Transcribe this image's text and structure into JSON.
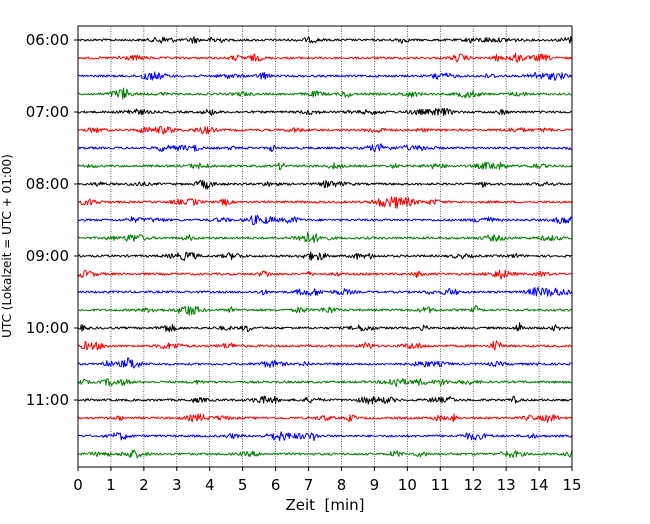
{
  "chart_data": {
    "type": "line",
    "title": "",
    "xlabel": "Zeit  [min]",
    "ylabel": "UTC (Lokalzeit = UTC + 01:00)",
    "xlim": [
      0,
      15
    ],
    "xticks": [
      0,
      1,
      2,
      3,
      4,
      5,
      6,
      7,
      8,
      9,
      10,
      11,
      12,
      13,
      14,
      15
    ],
    "xtick_labels": [
      "0",
      "1",
      "2",
      "3",
      "4",
      "5",
      "6",
      "7",
      "8",
      "9",
      "10",
      "11",
      "12",
      "13",
      "14",
      "15"
    ],
    "ytick_labels": [
      "06:00",
      "07:00",
      "08:00",
      "09:00",
      "10:00",
      "11:00"
    ],
    "vertical_grid": "dotted",
    "line_start_time": "06:00",
    "line_interval_min": 15,
    "line_count": 24,
    "trace_colors": [
      "#000000",
      "#ff0000",
      "#0000ff",
      "#008000"
    ],
    "traces": [
      {
        "start": "06:00",
        "color": "#000000"
      },
      {
        "start": "06:15",
        "color": "#ff0000"
      },
      {
        "start": "06:30",
        "color": "#0000ff"
      },
      {
        "start": "06:45",
        "color": "#008000"
      },
      {
        "start": "07:00",
        "color": "#000000"
      },
      {
        "start": "07:15",
        "color": "#ff0000"
      },
      {
        "start": "07:30",
        "color": "#0000ff"
      },
      {
        "start": "07:45",
        "color": "#008000"
      },
      {
        "start": "08:00",
        "color": "#000000"
      },
      {
        "start": "08:15",
        "color": "#ff0000"
      },
      {
        "start": "08:30",
        "color": "#0000ff"
      },
      {
        "start": "08:45",
        "color": "#008000"
      },
      {
        "start": "09:00",
        "color": "#000000"
      },
      {
        "start": "09:15",
        "color": "#ff0000"
      },
      {
        "start": "09:30",
        "color": "#0000ff"
      },
      {
        "start": "09:45",
        "color": "#008000"
      },
      {
        "start": "10:00",
        "color": "#000000"
      },
      {
        "start": "10:15",
        "color": "#ff0000"
      },
      {
        "start": "10:30",
        "color": "#0000ff"
      },
      {
        "start": "10:45",
        "color": "#008000"
      },
      {
        "start": "11:00",
        "color": "#000000"
      },
      {
        "start": "11:15",
        "color": "#ff0000"
      },
      {
        "start": "11:30",
        "color": "#0000ff"
      },
      {
        "start": "11:45",
        "color": "#008000"
      }
    ]
  }
}
